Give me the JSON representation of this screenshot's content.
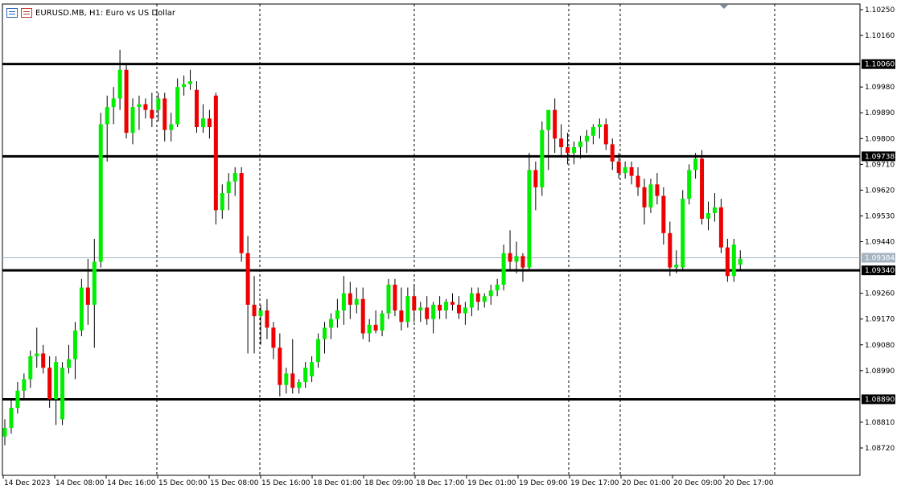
{
  "window": {
    "symbol_title": "EURUSD.MB, H1:  Euro vs US Dollar",
    "icons": [
      "chart-window-icon",
      "indicator-list-icon"
    ]
  },
  "colors": {
    "bull": "#00ee00",
    "bear": "#ee0000",
    "wick": "#000000",
    "grid": "#000000",
    "hline": "#000000",
    "current_line": "#a6b4c2"
  },
  "price_axis": {
    "ticks": [
      "1.10250",
      "1.10160",
      "1.09980",
      "1.09890",
      "1.09800",
      "1.09710",
      "1.09620",
      "1.09530",
      "1.09440",
      "1.09260",
      "1.09170",
      "1.09080",
      "1.08990",
      "1.08810",
      "1.08720"
    ],
    "tick_values": [
      1.1025,
      1.1016,
      1.0998,
      1.0989,
      1.098,
      1.0971,
      1.0962,
      1.0953,
      1.0944,
      1.0926,
      1.0917,
      1.0908,
      1.0899,
      1.0881,
      1.0872
    ]
  },
  "horizontal_levels": [
    {
      "label": "1.10060",
      "value": 1.1006
    },
    {
      "label": "1.09738",
      "value": 1.09738
    },
    {
      "label": "1.09340",
      "value": 1.0934
    },
    {
      "label": "1.08890",
      "value": 1.0889
    }
  ],
  "current_price": {
    "label": "1.09384",
    "value": 1.09384
  },
  "time_axis": {
    "labels": [
      "14 Dec 2023",
      "14 Dec 08:00",
      "14 Dec 16:00",
      "15 Dec 00:00",
      "15 Dec 08:00",
      "15 Dec 16:00",
      "18 Dec 01:00",
      "18 Dec 09:00",
      "18 Dec 17:00",
      "19 Dec 01:00",
      "19 Dec 09:00",
      "19 Dec 17:00",
      "20 Dec 01:00",
      "20 Dec 09:00",
      "20 Dec 17:00"
    ],
    "separator_indices": [
      3,
      5,
      8,
      11,
      12,
      15
    ]
  },
  "chart_data": {
    "type": "candlestick",
    "symbol": "EURUSD.MB",
    "timeframe": "H1",
    "bars": [
      {
        "o": 1.0876,
        "h": 1.0882,
        "l": 1.0873,
        "c": 1.0879
      },
      {
        "o": 1.0879,
        "h": 1.0889,
        "l": 1.0877,
        "c": 1.0886
      },
      {
        "o": 1.0886,
        "h": 1.0895,
        "l": 1.0884,
        "c": 1.0892
      },
      {
        "o": 1.0892,
        "h": 1.0898,
        "l": 1.0889,
        "c": 1.0896
      },
      {
        "o": 1.0896,
        "h": 1.0906,
        "l": 1.0893,
        "c": 1.0904
      },
      {
        "o": 1.0904,
        "h": 1.0914,
        "l": 1.09,
        "c": 1.0905
      },
      {
        "o": 1.0905,
        "h": 1.0908,
        "l": 1.0898,
        "c": 1.09
      },
      {
        "o": 1.09,
        "h": 1.0904,
        "l": 1.0886,
        "c": 1.0889
      },
      {
        "o": 1.0889,
        "h": 1.0904,
        "l": 1.088,
        "c": 1.0902
      },
      {
        "o": 1.0882,
        "h": 1.0902,
        "l": 1.088,
        "c": 1.09
      },
      {
        "o": 1.09,
        "h": 1.0908,
        "l": 1.0898,
        "c": 1.0903
      },
      {
        "o": 1.0903,
        "h": 1.0916,
        "l": 1.0896,
        "c": 1.0913
      },
      {
        "o": 1.0913,
        "h": 1.0931,
        "l": 1.0911,
        "c": 1.0928
      },
      {
        "o": 1.0928,
        "h": 1.0938,
        "l": 1.0915,
        "c": 1.0922
      },
      {
        "o": 1.0922,
        "h": 1.0945,
        "l": 1.0907,
        "c": 1.0937
      },
      {
        "o": 1.0937,
        "h": 1.0989,
        "l": 1.0935,
        "c": 1.0985
      },
      {
        "o": 1.0985,
        "h": 1.0995,
        "l": 1.0972,
        "c": 1.0991
      },
      {
        "o": 1.0991,
        "h": 1.0998,
        "l": 1.0985,
        "c": 1.0994
      },
      {
        "o": 1.0994,
        "h": 1.1011,
        "l": 1.099,
        "c": 1.1004
      },
      {
        "o": 1.1004,
        "h": 1.1006,
        "l": 1.098,
        "c": 1.0982
      },
      {
        "o": 1.0982,
        "h": 1.0994,
        "l": 1.0978,
        "c": 1.0991
      },
      {
        "o": 1.0991,
        "h": 1.0995,
        "l": 1.0983,
        "c": 1.0992
      },
      {
        "o": 1.0992,
        "h": 1.0994,
        "l": 1.0987,
        "c": 1.099
      },
      {
        "o": 1.099,
        "h": 1.0996,
        "l": 1.0984,
        "c": 1.0987
      },
      {
        "o": 1.099,
        "h": 1.0996,
        "l": 1.0986,
        "c": 1.0994
      },
      {
        "o": 1.0994,
        "h": 1.0996,
        "l": 1.0979,
        "c": 1.0983
      },
      {
        "o": 1.0983,
        "h": 1.0989,
        "l": 1.0979,
        "c": 1.0985
      },
      {
        "o": 1.0985,
        "h": 1.1001,
        "l": 1.0984,
        "c": 1.0998
      },
      {
        "o": 1.0998,
        "h": 1.1002,
        "l": 1.0995,
        "c": 1.0999
      },
      {
        "o": 1.0999,
        "h": 1.1004,
        "l": 1.0997,
        "c": 1.1
      },
      {
        "o": 1.0997,
        "h": 1.1,
        "l": 1.0982,
        "c": 1.0984
      },
      {
        "o": 1.0984,
        "h": 1.0992,
        "l": 1.0982,
        "c": 1.0987
      },
      {
        "o": 1.0987,
        "h": 1.099,
        "l": 1.098,
        "c": 1.0984
      },
      {
        "o": 1.0995,
        "h": 1.0996,
        "l": 1.095,
        "c": 1.0955
      },
      {
        "o": 1.0955,
        "h": 1.0964,
        "l": 1.0952,
        "c": 1.0961
      },
      {
        "o": 1.0961,
        "h": 1.0968,
        "l": 1.0955,
        "c": 1.0965
      },
      {
        "o": 1.0965,
        "h": 1.097,
        "l": 1.096,
        "c": 1.0968
      },
      {
        "o": 1.0968,
        "h": 1.097,
        "l": 1.0937,
        "c": 1.094
      },
      {
        "o": 1.094,
        "h": 1.0946,
        "l": 1.0905,
        "c": 1.0922
      },
      {
        "o": 1.0922,
        "h": 1.0932,
        "l": 1.0905,
        "c": 1.0918
      },
      {
        "o": 1.0918,
        "h": 1.0922,
        "l": 1.0908,
        "c": 1.092
      },
      {
        "o": 1.092,
        "h": 1.0924,
        "l": 1.091,
        "c": 1.0914
      },
      {
        "o": 1.0914,
        "h": 1.0916,
        "l": 1.0903,
        "c": 1.0907
      },
      {
        "o": 1.0907,
        "h": 1.0912,
        "l": 1.089,
        "c": 1.0894
      },
      {
        "o": 1.0894,
        "h": 1.09,
        "l": 1.0891,
        "c": 1.0898
      },
      {
        "o": 1.0898,
        "h": 1.091,
        "l": 1.0891,
        "c": 1.0893
      },
      {
        "o": 1.0893,
        "h": 1.0896,
        "l": 1.0891,
        "c": 1.0895
      },
      {
        "o": 1.0895,
        "h": 1.0902,
        "l": 1.0893,
        "c": 1.09
      },
      {
        "o": 1.0897,
        "h": 1.0904,
        "l": 1.0895,
        "c": 1.0902
      },
      {
        "o": 1.0902,
        "h": 1.0912,
        "l": 1.09,
        "c": 1.091
      },
      {
        "o": 1.091,
        "h": 1.0916,
        "l": 1.0905,
        "c": 1.0914
      },
      {
        "o": 1.0914,
        "h": 1.0919,
        "l": 1.091,
        "c": 1.0917
      },
      {
        "o": 1.0917,
        "h": 1.0924,
        "l": 1.0914,
        "c": 1.092
      },
      {
        "o": 1.092,
        "h": 1.0932,
        "l": 1.0915,
        "c": 1.0926
      },
      {
        "o": 1.0926,
        "h": 1.093,
        "l": 1.0917,
        "c": 1.0922
      },
      {
        "o": 1.0922,
        "h": 1.0928,
        "l": 1.0919,
        "c": 1.0924
      },
      {
        "o": 1.0924,
        "h": 1.0928,
        "l": 1.091,
        "c": 1.0912
      },
      {
        "o": 1.0912,
        "h": 1.0917,
        "l": 1.0909,
        "c": 1.0915
      },
      {
        "o": 1.0915,
        "h": 1.092,
        "l": 1.0912,
        "c": 1.0913
      },
      {
        "o": 1.0913,
        "h": 1.092,
        "l": 1.0911,
        "c": 1.0919
      },
      {
        "o": 1.0919,
        "h": 1.0931,
        "l": 1.0917,
        "c": 1.0929
      },
      {
        "o": 1.0929,
        "h": 1.0931,
        "l": 1.0918,
        "c": 1.092
      },
      {
        "o": 1.092,
        "h": 1.0928,
        "l": 1.0913,
        "c": 1.0916
      },
      {
        "o": 1.0916,
        "h": 1.0928,
        "l": 1.0914,
        "c": 1.0925
      },
      {
        "o": 1.0925,
        "h": 1.0929,
        "l": 1.0916,
        "c": 1.092
      },
      {
        "o": 1.092,
        "h": 1.0923,
        "l": 1.0916,
        "c": 1.0921
      },
      {
        "o": 1.0921,
        "h": 1.0925,
        "l": 1.0915,
        "c": 1.0917
      },
      {
        "o": 1.0917,
        "h": 1.0923,
        "l": 1.0912,
        "c": 1.0922
      },
      {
        "o": 1.0922,
        "h": 1.0925,
        "l": 1.0917,
        "c": 1.092
      },
      {
        "o": 1.092,
        "h": 1.0924,
        "l": 1.0917,
        "c": 1.0923
      },
      {
        "o": 1.0923,
        "h": 1.0926,
        "l": 1.092,
        "c": 1.0922
      },
      {
        "o": 1.0922,
        "h": 1.0925,
        "l": 1.0917,
        "c": 1.0919
      },
      {
        "o": 1.0919,
        "h": 1.0923,
        "l": 1.0915,
        "c": 1.0921
      },
      {
        "o": 1.0921,
        "h": 1.0928,
        "l": 1.0918,
        "c": 1.0926
      },
      {
        "o": 1.0926,
        "h": 1.0928,
        "l": 1.092,
        "c": 1.0923
      },
      {
        "o": 1.0923,
        "h": 1.0926,
        "l": 1.0921,
        "c": 1.0925
      },
      {
        "o": 1.0925,
        "h": 1.0929,
        "l": 1.0922,
        "c": 1.0927
      },
      {
        "o": 1.0927,
        "h": 1.0931,
        "l": 1.0925,
        "c": 1.0929
      },
      {
        "o": 1.0929,
        "h": 1.0943,
        "l": 1.0927,
        "c": 1.094
      },
      {
        "o": 1.094,
        "h": 1.0948,
        "l": 1.0934,
        "c": 1.0937
      },
      {
        "o": 1.0937,
        "h": 1.0944,
        "l": 1.0933,
        "c": 1.0939
      },
      {
        "o": 1.0939,
        "h": 1.094,
        "l": 1.093,
        "c": 1.0935
      },
      {
        "o": 1.0935,
        "h": 1.0975,
        "l": 1.0934,
        "c": 1.0969
      },
      {
        "o": 1.0969,
        "h": 1.0972,
        "l": 1.0955,
        "c": 1.0963
      },
      {
        "o": 1.0963,
        "h": 1.0986,
        "l": 1.096,
        "c": 1.0983
      },
      {
        "o": 1.0983,
        "h": 1.0988,
        "l": 1.0969,
        "c": 1.099
      },
      {
        "o": 1.099,
        "h": 1.0994,
        "l": 1.0975,
        "c": 1.098
      },
      {
        "o": 1.098,
        "h": 1.0985,
        "l": 1.0974,
        "c": 1.0977
      },
      {
        "o": 1.0977,
        "h": 1.0982,
        "l": 1.0971,
        "c": 1.0975
      },
      {
        "o": 1.0975,
        "h": 1.0979,
        "l": 1.0971,
        "c": 1.0977
      },
      {
        "o": 1.0977,
        "h": 1.0981,
        "l": 1.0973,
        "c": 1.0979
      },
      {
        "o": 1.0979,
        "h": 1.0983,
        "l": 1.0975,
        "c": 1.0981
      },
      {
        "o": 1.0981,
        "h": 1.0985,
        "l": 1.0978,
        "c": 1.0984
      },
      {
        "o": 1.0984,
        "h": 1.0987,
        "l": 1.098,
        "c": 1.0985
      },
      {
        "o": 1.0985,
        "h": 1.0987,
        "l": 1.0976,
        "c": 1.0978
      },
      {
        "o": 1.0978,
        "h": 1.098,
        "l": 1.0969,
        "c": 1.0972
      },
      {
        "o": 1.0972,
        "h": 1.0975,
        "l": 1.0966,
        "c": 1.0968
      },
      {
        "o": 1.0968,
        "h": 1.0972,
        "l": 1.0966,
        "c": 1.097
      },
      {
        "o": 1.097,
        "h": 1.0972,
        "l": 1.0964,
        "c": 1.0967
      },
      {
        "o": 1.0967,
        "h": 1.097,
        "l": 1.096,
        "c": 1.0963
      },
      {
        "o": 1.0963,
        "h": 1.0966,
        "l": 1.095,
        "c": 1.0956
      },
      {
        "o": 1.0956,
        "h": 1.0966,
        "l": 1.0954,
        "c": 1.0964
      },
      {
        "o": 1.0964,
        "h": 1.0968,
        "l": 1.0957,
        "c": 1.096
      },
      {
        "o": 1.096,
        "h": 1.0963,
        "l": 1.0943,
        "c": 1.0947
      },
      {
        "o": 1.0947,
        "h": 1.0951,
        "l": 1.0932,
        "c": 1.0935
      },
      {
        "o": 1.0935,
        "h": 1.0941,
        "l": 1.0933,
        "c": 1.0936
      },
      {
        "o": 1.0935,
        "h": 1.0962,
        "l": 1.0934,
        "c": 1.0959
      },
      {
        "o": 1.0959,
        "h": 1.0971,
        "l": 1.0957,
        "c": 1.0969
      },
      {
        "o": 1.0969,
        "h": 1.0975,
        "l": 1.0966,
        "c": 1.0973
      },
      {
        "o": 1.0973,
        "h": 1.0976,
        "l": 1.095,
        "c": 1.0952
      },
      {
        "o": 1.0952,
        "h": 1.0958,
        "l": 1.0948,
        "c": 1.0954
      },
      {
        "o": 1.0954,
        "h": 1.0961,
        "l": 1.0951,
        "c": 1.0956
      },
      {
        "o": 1.0956,
        "h": 1.0959,
        "l": 1.094,
        "c": 1.0942
      },
      {
        "o": 1.0942,
        "h": 1.0945,
        "l": 1.093,
        "c": 1.0932
      },
      {
        "o": 1.0932,
        "h": 1.0945,
        "l": 1.093,
        "c": 1.0943
      },
      {
        "o": 1.0936,
        "h": 1.0941,
        "l": 1.0934,
        "c": 1.0938
      }
    ]
  }
}
